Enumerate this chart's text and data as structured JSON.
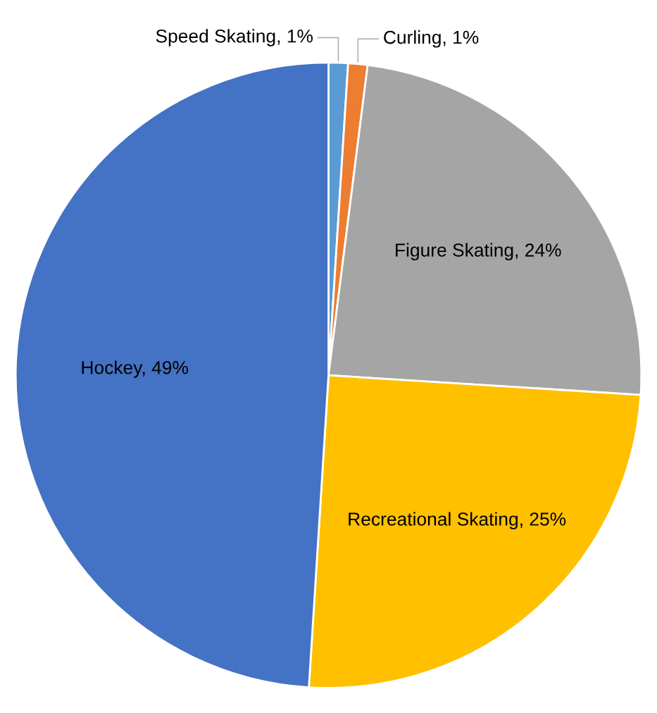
{
  "chart_data": {
    "type": "pie",
    "categories": [
      "Speed Skating",
      "Curling",
      "Figure Skating",
      "Recreational Skating",
      "Hockey"
    ],
    "values": [
      1,
      1,
      24,
      25,
      49
    ],
    "colors": [
      "#5b9bd5",
      "#ed7d31",
      "#a5a5a5",
      "#ffc000",
      "#4472c4"
    ],
    "value_labels": [
      "1%",
      "1%",
      "24%",
      "25%",
      "49%"
    ],
    "legend": false
  }
}
